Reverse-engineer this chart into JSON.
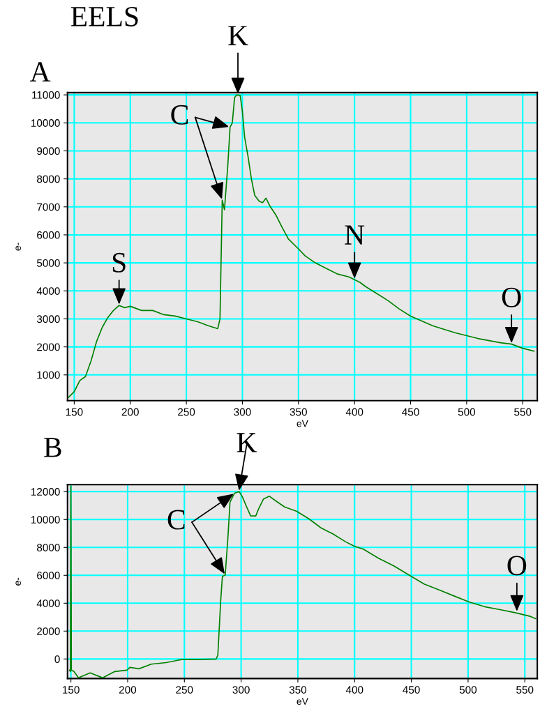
{
  "chart_data": [
    {
      "type": "line",
      "title": "EELS",
      "subtitle": "A",
      "xlabel": "eV",
      "ylabel": "e-",
      "xlim": [
        144,
        563
      ],
      "ylim": [
        80,
        11080
      ],
      "xticks": [
        150,
        200,
        250,
        300,
        350,
        400,
        450,
        500,
        550
      ],
      "yticks": [
        1000,
        2000,
        3000,
        4000,
        5000,
        6000,
        7000,
        8000,
        9000,
        10000,
        11000
      ],
      "grid": true,
      "series": [
        {
          "color": "#008000",
          "x": [
            145,
            150,
            155,
            160,
            165,
            170,
            175,
            180,
            185,
            190,
            195,
            200,
            210,
            220,
            230,
            240,
            250,
            260,
            270,
            278,
            280,
            282,
            284,
            287,
            289,
            291,
            293,
            295,
            298,
            300,
            302,
            305,
            308,
            311,
            315,
            318,
            321,
            325,
            330,
            335,
            341,
            350,
            356,
            365,
            375,
            385,
            395,
            400,
            405,
            410,
            420,
            430,
            440,
            450,
            470,
            490,
            510,
            530,
            540,
            550,
            560
          ],
          "values": [
            200,
            400,
            800,
            940,
            1500,
            2200,
            2700,
            3050,
            3300,
            3480,
            3400,
            3450,
            3300,
            3300,
            3150,
            3100,
            3000,
            2900,
            2750,
            2650,
            3000,
            7240,
            6900,
            8500,
            9850,
            10000,
            10900,
            11000,
            10980,
            10400,
            9480,
            8800,
            8000,
            7410,
            7200,
            7150,
            7310,
            7000,
            6700,
            6300,
            5850,
            5500,
            5250,
            5000,
            4800,
            4600,
            4500,
            4400,
            4300,
            4150,
            3900,
            3650,
            3350,
            3100,
            2750,
            2500,
            2300,
            2150,
            2100,
            1950,
            1850
          ]
        }
      ],
      "annotations": [
        {
          "text": "K",
          "x": 296,
          "y": 11000
        },
        {
          "text": "C",
          "x": 289,
          "y": 9850
        },
        {
          "text": "S",
          "x": 190,
          "y": 3480
        },
        {
          "text": "N",
          "x": 400,
          "y": 4400
        },
        {
          "text": "O",
          "x": 540,
          "y": 2100
        }
      ]
    },
    {
      "type": "line",
      "title": "B",
      "xlabel": "eV",
      "ylabel": "e-",
      "xlim": [
        147,
        561
      ],
      "ylim": [
        -1400,
        12500
      ],
      "xticks": [
        150,
        200,
        250,
        300,
        350,
        400,
        450,
        500,
        550
      ],
      "yticks": [
        0,
        2000,
        4000,
        6000,
        8000,
        10000,
        12000
      ],
      "grid": true,
      "series": [
        {
          "color": "#008000",
          "x": [
            148.7,
            149.6,
            150,
            150.4,
            152.7,
            156.7,
            167,
            178,
            188.7,
            199.4,
            202,
            210,
            220.8,
            234,
            247.5,
            260.8,
            278,
            279.5,
            282,
            283.5,
            286,
            288.4,
            290.2,
            294.2,
            298.2,
            300.9,
            304.9,
            308.4,
            312.9,
            315.6,
            319.6,
            324.9,
            330.3,
            338.3,
            349,
            359.7,
            370.4,
            381,
            391.7,
            399.7,
            407.7,
            421,
            434.5,
            447.8,
            461.2,
            474.5,
            487.9,
            501.2,
            514.6,
            528,
            541.3,
            554.7,
            559.5
          ],
          "values": [
            -800,
            -900,
            12400,
            -800,
            -900,
            -1350,
            -1000,
            -1350,
            -900,
            -800,
            -600,
            -700,
            -370,
            -260,
            -40,
            -40,
            0,
            280,
            4190,
            5920,
            6030,
            8750,
            11240,
            11890,
            12000,
            11670,
            10900,
            10260,
            10260,
            10800,
            11460,
            11670,
            11350,
            10900,
            10590,
            10050,
            9400,
            8960,
            8420,
            8090,
            7880,
            7230,
            6680,
            6030,
            5380,
            4950,
            4510,
            4080,
            3750,
            3540,
            3320,
            3060,
            2890
          ]
        }
      ],
      "annotations": [
        {
          "text": "K",
          "x": 298,
          "y": 12000
        },
        {
          "text": "C",
          "x": 294.2,
          "y": 11890
        },
        {
          "text": "O",
          "x": 543,
          "y": 3350
        }
      ]
    }
  ]
}
